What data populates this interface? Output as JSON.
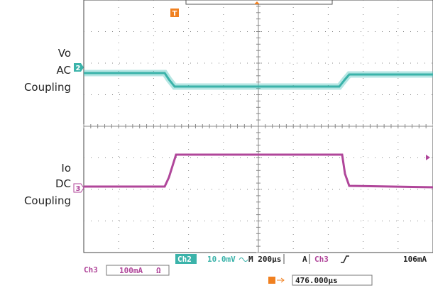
{
  "left_labels": {
    "vo": [
      "Vo",
      "AC",
      "Coupling"
    ],
    "io": [
      "Io",
      "DC",
      "Coupling"
    ]
  },
  "channel_markers": [
    "2",
    "3"
  ],
  "trigger_marker": "T",
  "readout": {
    "ch2_label": "Ch2",
    "ch2_scale": "10.0mV",
    "timebase": "M 200µs",
    "trigger_mode": "A",
    "trigger_source": "Ch3",
    "trigger_level": "106mA",
    "ch3_label": "Ch3",
    "ch3_scale": "100mA",
    "ch3_coupling": "Ω",
    "trigger_position": "476.000µs"
  }
}
